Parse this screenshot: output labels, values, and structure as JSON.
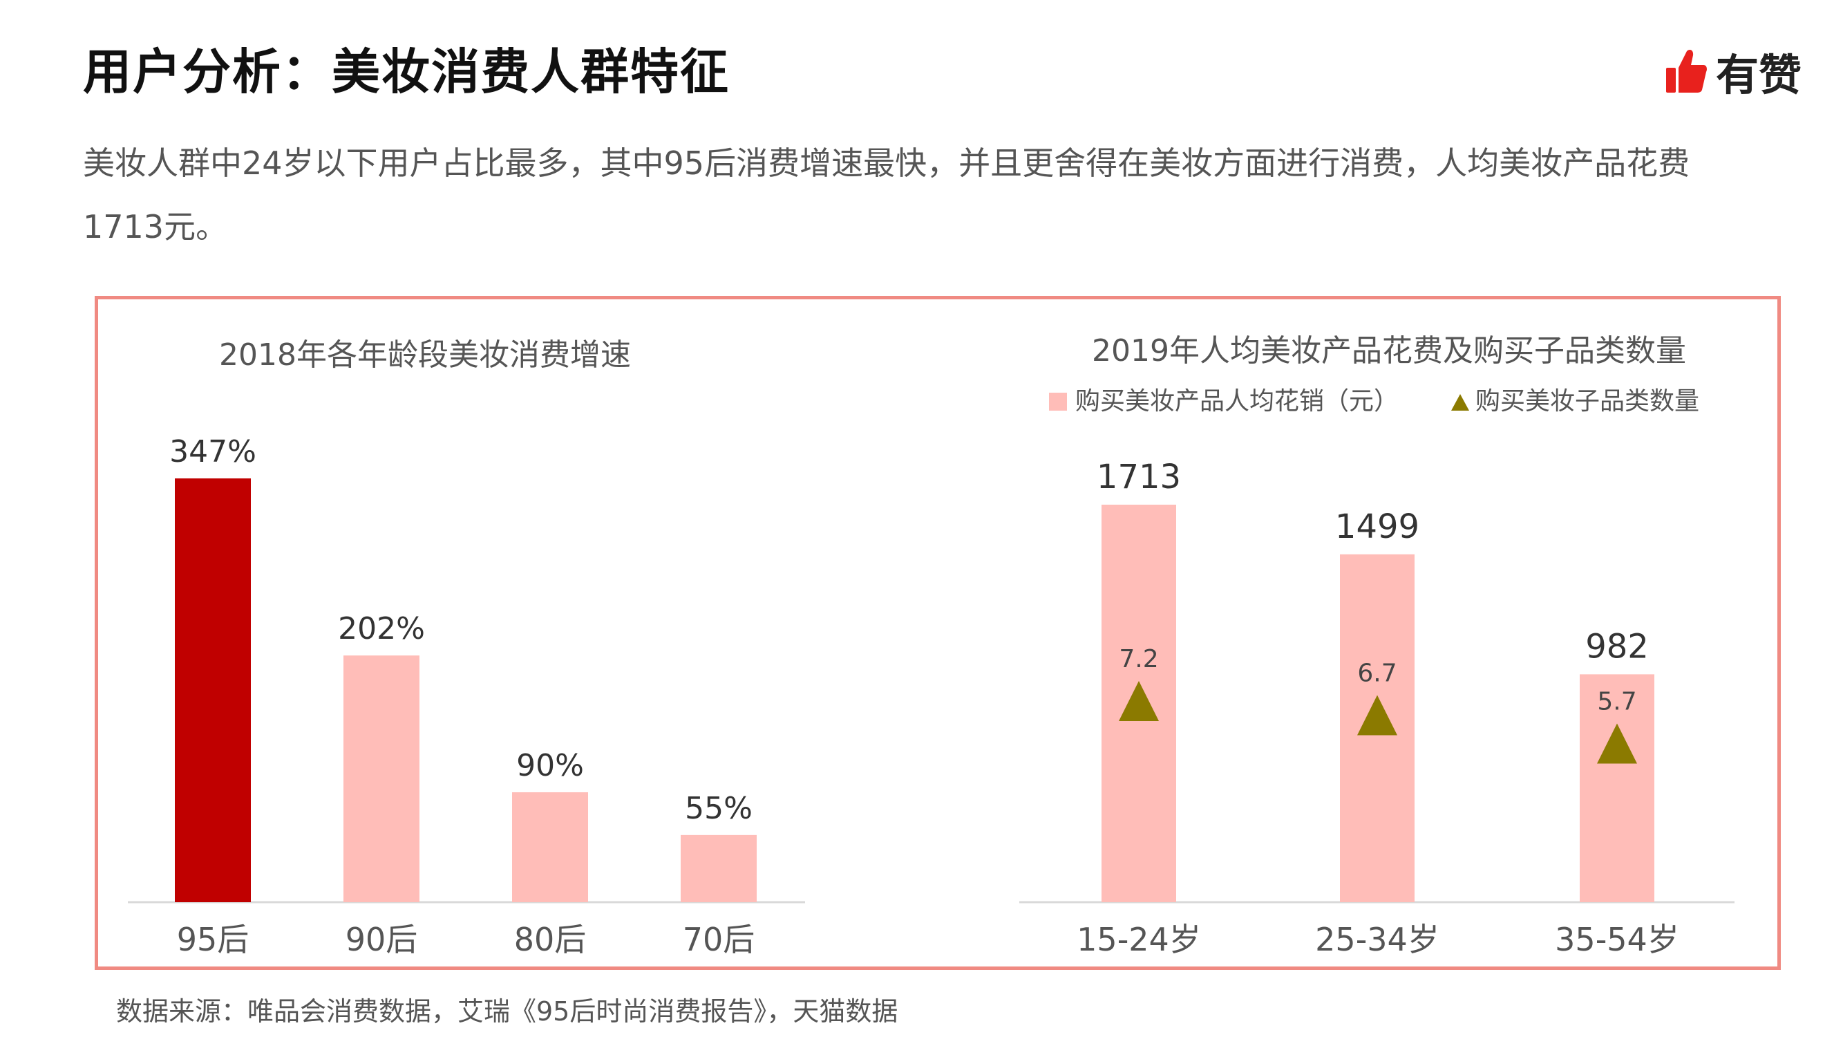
{
  "header": {
    "title": "用户分析：美妆消费人群特征",
    "logo_text": "有赞",
    "subtitle": "美妆人群中24岁以下用户占比最多，其中95后消费增速最快，并且更舍得在美妆方面进行消费，人均美妆产品花费1713元。"
  },
  "footer": {
    "source": "数据来源：唯品会消费数据，艾瑞《95后时尚消费报告》，天猫数据"
  },
  "colors": {
    "accent": "#c00000",
    "bar_light": "#ffbdb8",
    "marker": "#8b7a00",
    "frame": "#f08a82"
  },
  "chart_data": [
    {
      "type": "bar",
      "title": "2018年各年龄段美妆消费增速",
      "categories": [
        "95后",
        "90后",
        "80后",
        "70后"
      ],
      "values": [
        347,
        202,
        90,
        55
      ],
      "labels": [
        "347%",
        "202%",
        "90%",
        "55%"
      ],
      "ylim": [
        0,
        347
      ],
      "grid": false,
      "highlight_index": 0
    },
    {
      "type": "bar",
      "title": "2019年人均美妆产品花费及购买子品类数量",
      "categories": [
        "15-24岁",
        "25-34岁",
        "35-54岁"
      ],
      "legend_position": "top",
      "series": [
        {
          "name": "购买美妆产品人均花销（元）",
          "type": "bar",
          "values": [
            1713,
            1499,
            982
          ],
          "labels": [
            "1713",
            "1499",
            "982"
          ]
        },
        {
          "name": "购买美妆子品类数量",
          "type": "scatter",
          "marker": "triangle",
          "values": [
            7.2,
            6.7,
            5.7
          ],
          "labels": [
            "7.2",
            "6.7",
            "5.7"
          ]
        }
      ],
      "ylim": [
        0,
        1713
      ],
      "grid": false
    }
  ]
}
